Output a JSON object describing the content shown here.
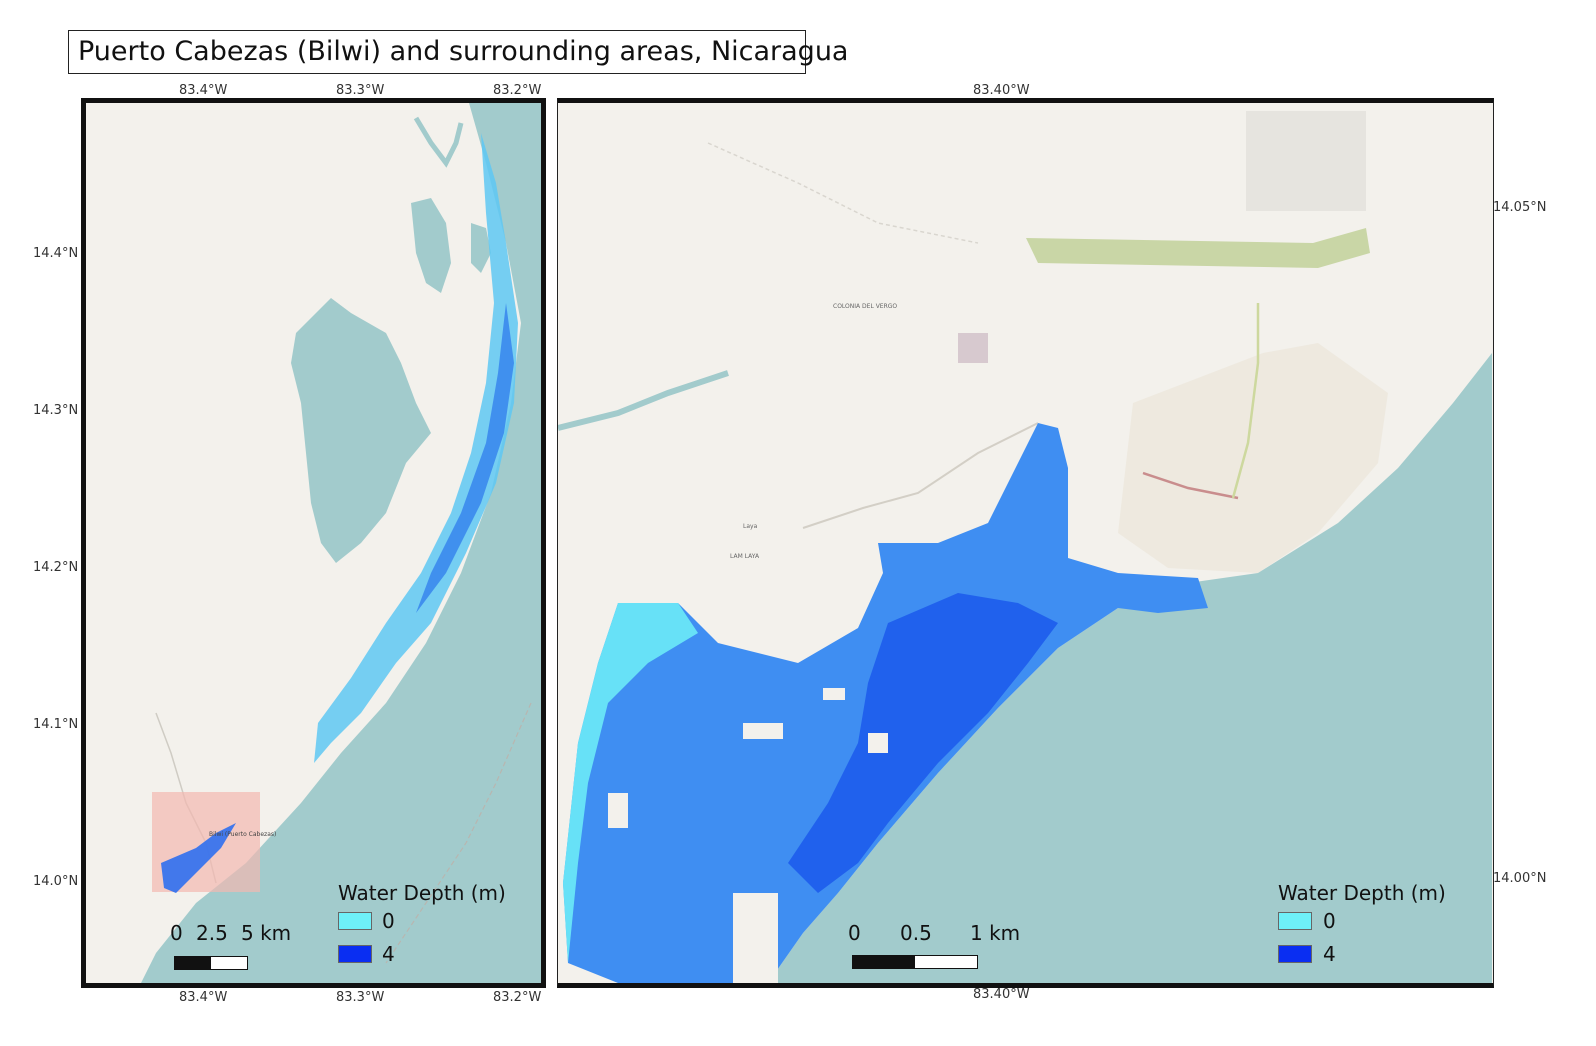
{
  "title": "Puerto Cabezas (Bilwi) and surrounding areas, Nicaragua",
  "left_map": {
    "top_longitudes": [
      "83.4°W",
      "83.3°W",
      "83.2°W"
    ],
    "bottom_longitudes": [
      "83.4°W",
      "83.3°W",
      "83.2°W"
    ],
    "latitudes": [
      "14.4°N",
      "14.3°N",
      "14.2°N",
      "14.1°N",
      "14.0°N"
    ],
    "place_labels": [
      "Bilwi (Puerto Cabezas)"
    ],
    "scale_bar": {
      "labels": [
        "0",
        "2.5",
        "5 km"
      ]
    },
    "legend": {
      "title": "Water Depth (m)",
      "items": [
        {
          "label": "0",
          "color": "#6ef0f8"
        },
        {
          "label": "4",
          "color": "#0a2ef2"
        }
      ]
    }
  },
  "right_map": {
    "top_longitude": "83.40°W",
    "bottom_longitude": "83.40°W",
    "latitudes": [
      "14.05°N",
      "14.00°N"
    ],
    "place_labels": [
      "COLONIA DEL VERGO",
      "LAM LAYA",
      "Laya"
    ],
    "scale_bar": {
      "labels": [
        "0",
        "0.5",
        "1 km"
      ]
    },
    "legend": {
      "title": "Water Depth (m)",
      "items": [
        {
          "label": "0",
          "color": "#6ef0f8"
        },
        {
          "label": "4",
          "color": "#0a2ef2"
        }
      ]
    }
  },
  "colors": {
    "sea": "#a2cbcc",
    "land": "#f3f1ec",
    "flood_shallow": "#6ef0f8",
    "flood_deep": "#0a2ef2",
    "highlight": "#f2b8b0"
  }
}
